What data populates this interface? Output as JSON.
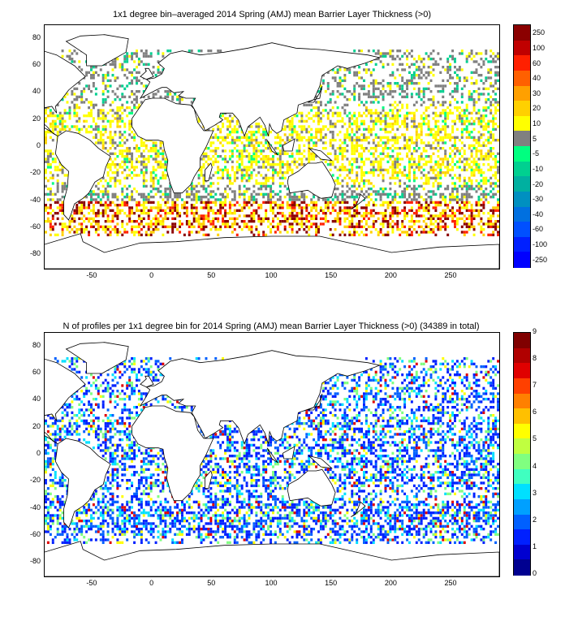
{
  "panels": [
    {
      "title": "1x1 degree bin–averaged 2014 Spring (AMJ) mean Barrier Layer Thickness (>0)",
      "x_ticks": [
        "-50",
        "0",
        "50",
        "100",
        "150",
        "200",
        "250"
      ],
      "y_ticks": [
        "80",
        "60",
        "40",
        "20",
        "0",
        "-20",
        "-40",
        "-60",
        "-80"
      ],
      "colorbar_labels": [
        "250",
        "100",
        "60",
        "40",
        "30",
        "20",
        "10",
        "5",
        "-5",
        "-10",
        "-20",
        "-30",
        "-40",
        "-60",
        "-100",
        "-250"
      ],
      "colorbar_colors": [
        "#8b0000",
        "#c00000",
        "#ff2000",
        "#ff6000",
        "#ffa000",
        "#ffd000",
        "#ffff00",
        "#808080",
        "#00ff80",
        "#00d090",
        "#00b0a0",
        "#0090c0",
        "#0070e0",
        "#0050ff",
        "#0020ff",
        "#0000ff"
      ]
    },
    {
      "title": "N of profiles per 1x1 degree bin for 2014 Spring (AMJ) mean Barrier Layer Thickness (>0) (34389 in total)",
      "x_ticks": [
        "-50",
        "0",
        "50",
        "100",
        "150",
        "200",
        "250"
      ],
      "y_ticks": [
        "80",
        "60",
        "40",
        "20",
        "0",
        "-20",
        "-40",
        "-60",
        "-80"
      ],
      "colorbar_labels": [
        "9",
        "8",
        "7",
        "6",
        "5",
        "4",
        "3",
        "2",
        "1",
        "0"
      ],
      "colorbar_colors": [
        "#800000",
        "#b00000",
        "#e00000",
        "#ff4000",
        "#ff8000",
        "#ffc000",
        "#ffff00",
        "#c0ff40",
        "#80ff80",
        "#40ffc0",
        "#00e0ff",
        "#00a0ff",
        "#0060ff",
        "#0020ff",
        "#0000d0",
        "#000090"
      ]
    }
  ],
  "map_extent": {
    "lon": [
      -90,
      290
    ],
    "lat": [
      -90,
      90
    ]
  },
  "chart_data": [
    {
      "type": "heatmap",
      "title": "1x1 degree bin–averaged 2014 Spring (AMJ) mean Barrier Layer Thickness (>0)",
      "x_range": [
        -90,
        290
      ],
      "y_range": [
        -90,
        90
      ],
      "colorbar_ticks": [
        250,
        100,
        60,
        40,
        30,
        20,
        10,
        5,
        -5,
        -10,
        -20,
        -30,
        -40,
        -60,
        -100,
        -250
      ]
    },
    {
      "type": "heatmap",
      "title": "N of profiles per 1x1 degree bin for 2014 Spring (AMJ) mean Barrier Layer Thickness (>0) (34389 in total)",
      "x_range": [
        -90,
        290
      ],
      "y_range": [
        -90,
        90
      ],
      "colorbar_ticks": [
        0,
        1,
        2,
        3,
        4,
        5,
        6,
        7,
        8,
        9
      ],
      "total_profiles": 34389
    }
  ]
}
